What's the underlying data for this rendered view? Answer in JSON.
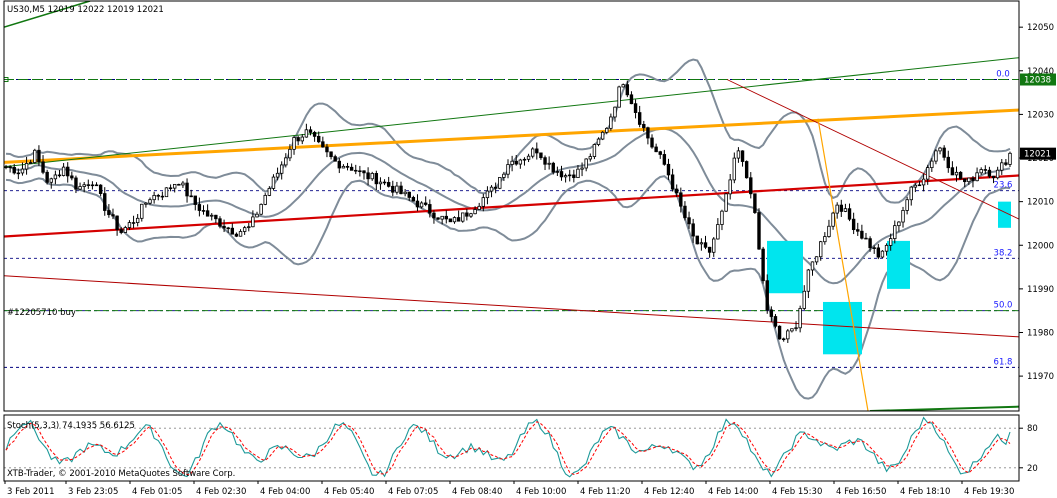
{
  "header": {
    "symbol_label": "US30,M5  12019 12022 12019 12021",
    "order_label": "#12205710 buy",
    "stoch_label": "Stoch(5,3,3) 74.1935 56.6125",
    "footer_label": "XTB-Trader, © 2001-2010 MetaQuotes Software Corp."
  },
  "colors": {
    "axis": "#000000",
    "candle": "#000000",
    "bollinger": "#7f8c99",
    "orange": "#ffa500",
    "red": "#d40000",
    "darkred": "#b00000",
    "green": "#117711",
    "fib": "#1a1aff",
    "cyan": "#00e5ee",
    "grid": "#000080",
    "stoch_main": "#1e9a9a",
    "stoch_signal": "#ff0000"
  },
  "chart_data": [
    {
      "type": "candlestick",
      "symbol": "US30",
      "timeframe": "M5",
      "ohlc_last": [
        12019,
        12022,
        12019,
        12021
      ],
      "ylim": [
        11962,
        12056
      ],
      "yticks": [
        12050,
        12040,
        12030,
        12020,
        12010,
        12000,
        11990,
        11980,
        11970
      ],
      "ytick_labels": [
        "12050",
        "12040",
        "12030",
        "12020",
        "12010",
        "12000",
        "11990",
        "11980",
        "11970"
      ],
      "xtick_labels": [
        "3 Feb 2011",
        "3 Feb 23:05",
        "4 Feb 01:05",
        "4 Feb 02:30",
        "4 Feb 04:00",
        "4 Feb 05:40",
        "4 Feb 07:05",
        "4 Feb 08:40",
        "4 Feb 10:00",
        "4 Feb 11:20",
        "4 Feb 12:40",
        "4 Feb 14:00",
        "4 Feb 15:30",
        "4 Feb 16:50",
        "4 Feb 18:10",
        "4 Feb 19:30"
      ],
      "price_tags": [
        {
          "label": "12038",
          "value": 12038,
          "color": "#117711"
        },
        {
          "label": "12021",
          "value": 12021,
          "color": "#000000"
        }
      ],
      "order_level": 11985,
      "fibonacci": [
        {
          "label": "0.0",
          "value": 12038
        },
        {
          "label": "23.6",
          "value": 12012.5
        },
        {
          "label": "38.2",
          "value": 11997
        },
        {
          "label": "50.0",
          "value": 11985
        },
        {
          "label": "61.8",
          "value": 11972
        }
      ],
      "key_prices": [
        12018,
        12017,
        12021,
        12014,
        12018,
        12013,
        12015,
        12008,
        12003,
        12006,
        12011,
        12012,
        12015,
        12010,
        12007,
        12005,
        12003,
        12004,
        12011,
        12017,
        12024,
        12026,
        12022,
        12019,
        12018,
        12016,
        12015,
        12013,
        12011,
        12009,
        12007,
        12005,
        12007,
        12010,
        12013,
        12019,
        12020,
        12022,
        12018,
        12016,
        12017,
        12022,
        12028,
        12038,
        12030,
        12023,
        12018,
        12009,
        12001,
        11998,
        12008,
        12022,
        12012,
        11986,
        11978,
        11981,
        11994,
        12002,
        12010,
        12005,
        12001,
        11997,
        12004,
        12012,
        12016,
        12023,
        12017,
        12014,
        12018,
        12016,
        12021
      ]
    },
    {
      "type": "line",
      "name": "Stoch(5,3,3)",
      "values_label": "74.1935 56.6125",
      "ylim": [
        0,
        100
      ],
      "yticks": [
        80,
        20
      ],
      "main_last": 74.1935,
      "signal_last": 56.6125
    }
  ]
}
